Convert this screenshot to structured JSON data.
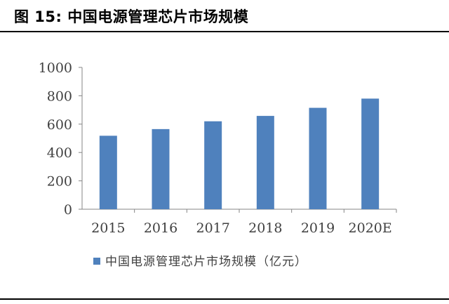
{
  "figure": {
    "label": "图 15:",
    "title": "中国电源管理芯片市场规模"
  },
  "chart_data": {
    "type": "bar",
    "categories": [
      "2015",
      "2016",
      "2017",
      "2018",
      "2019",
      "2020E"
    ],
    "series": [
      {
        "name": "中国电源管理芯片市场规模（亿元）",
        "values": [
          518,
          565,
          620,
          658,
          715,
          780
        ],
        "color": "#4f81bd"
      }
    ],
    "ylim": [
      0,
      1000
    ],
    "yticks": [
      0,
      200,
      400,
      600,
      800,
      1000
    ],
    "grid": false,
    "legend": "bottom"
  }
}
